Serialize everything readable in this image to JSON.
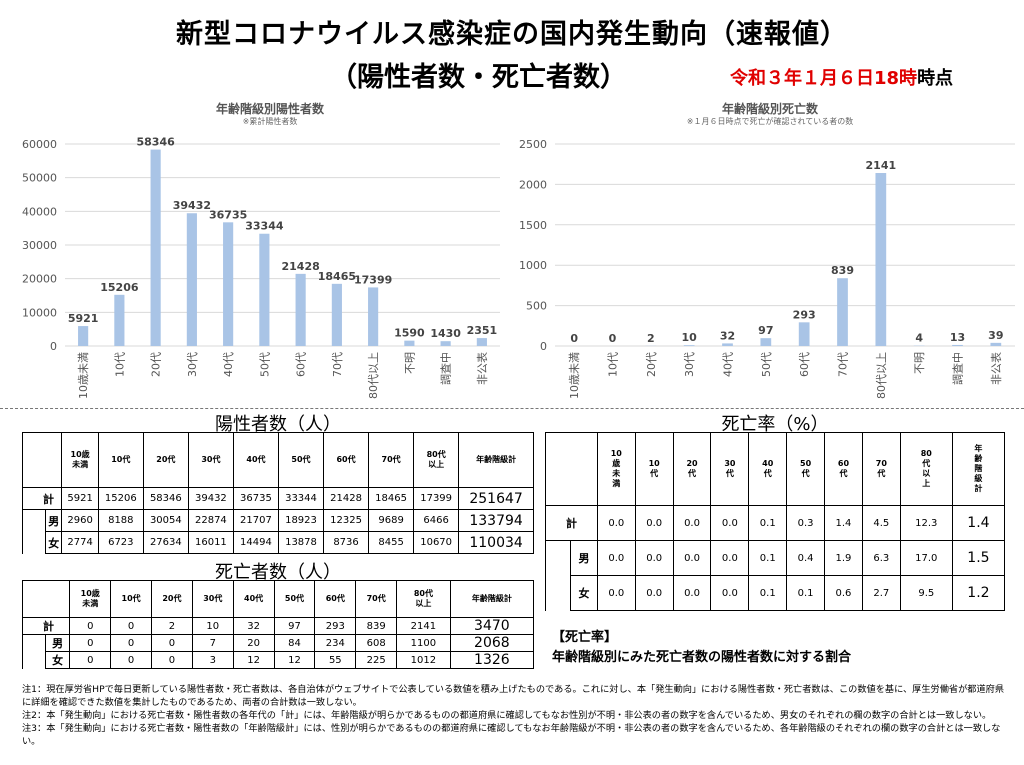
{
  "header": {
    "title_line1": "新型コロナウイルス感染症の国内発生動向（速報値）",
    "title_line2": "（陽性者数・死亡者数）",
    "asof_date": "令和３年１月６日18時",
    "asof_suffix": "時点"
  },
  "chart_data": [
    {
      "type": "bar",
      "title": "年齢階級別陽性者数",
      "subtitle": "※累計陽性者数",
      "categories": [
        "10歳未満",
        "10代",
        "20代",
        "30代",
        "40代",
        "50代",
        "60代",
        "70代",
        "80代以上",
        "不明",
        "調査中",
        "非公表"
      ],
      "values": [
        5921,
        15206,
        58346,
        39432,
        36735,
        33344,
        21428,
        18465,
        17399,
        1590,
        1430,
        2351
      ],
      "yticks": [
        0,
        10000,
        20000,
        30000,
        40000,
        50000,
        60000
      ],
      "ylim": [
        0,
        60000
      ],
      "color": "#a9c4e6"
    },
    {
      "type": "bar",
      "title": "年齢階級別死亡数",
      "subtitle": "※１月６日時点で死亡が確認されている者の数",
      "categories": [
        "10歳未満",
        "10代",
        "20代",
        "30代",
        "40代",
        "50代",
        "60代",
        "70代",
        "80代以上",
        "不明",
        "調査中",
        "非公表"
      ],
      "values": [
        0,
        0,
        2,
        10,
        32,
        97,
        293,
        839,
        2141,
        4,
        13,
        39
      ],
      "yticks": [
        0,
        500,
        1000,
        1500,
        2000,
        2500
      ],
      "ylim": [
        0,
        2500
      ],
      "color": "#a9c4e6"
    }
  ],
  "positives": {
    "title": "陽性者数（人）",
    "headers": [
      "10歳\n未満",
      "10代",
      "20代",
      "30代",
      "40代",
      "50代",
      "60代",
      "70代",
      "80代\n以上",
      "年齢階級計"
    ],
    "rows": [
      {
        "label": "計",
        "values": [
          "5921",
          "15206",
          "58346",
          "39432",
          "36735",
          "33344",
          "21428",
          "18465",
          "17399"
        ],
        "total": "251647"
      },
      {
        "label": "男",
        "values": [
          "2960",
          "8188",
          "30054",
          "22874",
          "21707",
          "18923",
          "12325",
          "9689",
          "6466"
        ],
        "total": "133794"
      },
      {
        "label": "女",
        "values": [
          "2774",
          "6723",
          "27634",
          "16011",
          "14494",
          "13878",
          "8736",
          "8455",
          "10670"
        ],
        "total": "110034"
      }
    ]
  },
  "deaths": {
    "title": "死亡者数（人）",
    "headers": [
      "10歳\n未満",
      "10代",
      "20代",
      "30代",
      "40代",
      "50代",
      "60代",
      "70代",
      "80代\n以上",
      "年齢階級計"
    ],
    "rows": [
      {
        "label": "計",
        "values": [
          "0",
          "0",
          "2",
          "10",
          "32",
          "97",
          "293",
          "839",
          "2141"
        ],
        "total": "3470"
      },
      {
        "label": "男",
        "values": [
          "0",
          "0",
          "0",
          "7",
          "20",
          "84",
          "234",
          "608",
          "1100"
        ],
        "total": "2068"
      },
      {
        "label": "女",
        "values": [
          "0",
          "0",
          "0",
          "3",
          "12",
          "12",
          "55",
          "225",
          "1012"
        ],
        "total": "1326"
      }
    ]
  },
  "fatality": {
    "title": "死亡率（%）",
    "headers": [
      "10\n歳\n未\n満",
      "10\n代",
      "20\n代",
      "30\n代",
      "40\n代",
      "50\n代",
      "60\n代",
      "70\n代",
      "80\n代\n以\n上",
      "年\n齢\n階\n級\n計"
    ],
    "rows": [
      {
        "label": "計",
        "values": [
          "0.0",
          "0.0",
          "0.0",
          "0.0",
          "0.1",
          "0.3",
          "1.4",
          "4.5",
          "12.3"
        ],
        "total": "1.4"
      },
      {
        "label": "男",
        "values": [
          "0.0",
          "0.0",
          "0.0",
          "0.0",
          "0.1",
          "0.4",
          "1.9",
          "6.3",
          "17.0"
        ],
        "total": "1.5"
      },
      {
        "label": "女",
        "values": [
          "0.0",
          "0.0",
          "0.0",
          "0.0",
          "0.1",
          "0.1",
          "0.6",
          "2.7",
          "9.5"
        ],
        "total": "1.2"
      }
    ]
  },
  "fatality_note": {
    "heading": "【死亡率】",
    "text": "年齢階級別にみた死亡者数の陽性者数に対する割合"
  },
  "notes": [
    "注1：現在厚労省HPで毎日更新している陽性者数・死亡者数は、各自治体がウェブサイトで公表している数値を積み上げたものである。これに対し、本「発生動向」における陽性者数・死亡者数は、この数値を基に、厚生労働省が都道府県に詳細を確認できた数値を集計したものであるため、両者の合計数は一致しない。",
    "注2：本「発生動向」における死亡者数・陽性者数の各年代の「計」には、年齢階級が明らかであるものの都道府県に確認してもなお性別が不明・非公表の者の数字を含んでいるため、男女のそれぞれの欄の数字の合計とは一致しない。",
    "注3：本「発生動向」における死亡者数・陽性者数の「年齢階級計」には、性別が明らかであるものの都道府県に確認してもなお年齢階級が不明・非公表の者の数字を含んでいるため、各年齢階級のそれぞれの欄の数字の合計とは一致しない。"
  ]
}
